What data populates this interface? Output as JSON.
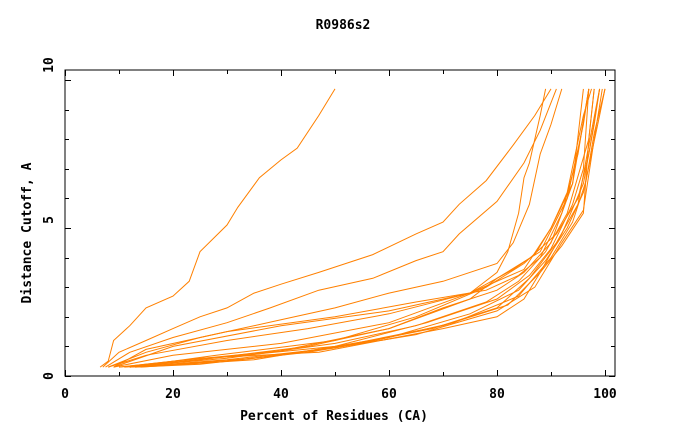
{
  "chart_data": {
    "type": "line",
    "title": "R0986s2",
    "xlabel": "Percent of Residues (CA)",
    "ylabel": "Distance Cutoff, A",
    "xlim": [
      0,
      100
    ],
    "ylim": [
      0,
      10
    ],
    "xticks": [
      "0",
      "20",
      "40",
      "60",
      "80",
      "100"
    ],
    "yticks": [
      "0",
      "5",
      "10"
    ],
    "grid": false,
    "line_color": "#ff8000",
    "series": [
      {
        "points": [
          [
            6.5,
            0.3
          ],
          [
            8,
            0.5
          ],
          [
            9,
            1.2
          ],
          [
            12,
            1.7
          ],
          [
            15,
            2.3
          ],
          [
            20,
            2.7
          ],
          [
            23,
            3.2
          ],
          [
            25,
            4.2
          ],
          [
            30,
            5.1
          ],
          [
            32,
            5.7
          ],
          [
            36,
            6.7
          ],
          [
            40,
            7.3
          ],
          [
            43,
            7.7
          ],
          [
            47,
            8.8
          ],
          [
            50,
            9.7
          ]
        ]
      },
      {
        "points": [
          [
            7,
            0.3
          ],
          [
            10,
            0.8
          ],
          [
            15,
            1.2
          ],
          [
            20,
            1.6
          ],
          [
            25,
            2.0
          ],
          [
            30,
            2.3
          ],
          [
            35,
            2.8
          ],
          [
            40,
            3.1
          ],
          [
            47,
            3.5
          ],
          [
            57,
            4.1
          ],
          [
            65,
            4.8
          ],
          [
            70,
            5.2
          ],
          [
            73,
            5.8
          ],
          [
            78,
            6.6
          ],
          [
            83,
            7.8
          ],
          [
            87,
            8.8
          ],
          [
            90,
            9.7
          ]
        ]
      },
      {
        "points": [
          [
            7.5,
            0.3
          ],
          [
            12,
            0.8
          ],
          [
            20,
            1.3
          ],
          [
            30,
            1.8
          ],
          [
            38,
            2.3
          ],
          [
            47,
            2.9
          ],
          [
            57,
            3.3
          ],
          [
            65,
            3.9
          ],
          [
            70,
            4.2
          ],
          [
            73,
            4.8
          ],
          [
            80,
            5.9
          ],
          [
            85,
            7.2
          ],
          [
            88,
            8.3
          ],
          [
            91,
            9.7
          ]
        ]
      },
      {
        "points": [
          [
            8,
            0.3
          ],
          [
            15,
            0.8
          ],
          [
            25,
            1.3
          ],
          [
            40,
            1.9
          ],
          [
            50,
            2.3
          ],
          [
            60,
            2.8
          ],
          [
            70,
            3.2
          ],
          [
            80,
            3.8
          ],
          [
            83,
            4.5
          ],
          [
            86,
            5.8
          ],
          [
            88,
            7.5
          ],
          [
            90,
            8.5
          ],
          [
            92,
            9.7
          ]
        ]
      },
      {
        "points": [
          [
            8,
            0.3
          ],
          [
            15,
            0.7
          ],
          [
            30,
            1.2
          ],
          [
            45,
            1.6
          ],
          [
            60,
            2.1
          ],
          [
            75,
            2.8
          ],
          [
            80,
            3.5
          ],
          [
            82,
            4.2
          ],
          [
            84,
            5.5
          ],
          [
            85,
            6.7
          ],
          [
            86,
            7.2
          ],
          [
            88,
            8.8
          ],
          [
            89,
            9.7
          ]
        ]
      },
      {
        "points": [
          [
            9,
            0.3
          ],
          [
            15,
            0.9
          ],
          [
            30,
            1.5
          ],
          [
            50,
            2.0
          ],
          [
            65,
            2.5
          ],
          [
            78,
            2.9
          ],
          [
            84,
            3.4
          ],
          [
            88,
            4.0
          ],
          [
            92,
            5.5
          ],
          [
            95,
            7.5
          ],
          [
            97,
            9.7
          ]
        ]
      },
      {
        "points": [
          [
            9,
            0.3
          ],
          [
            20,
            1.0
          ],
          [
            40,
            1.7
          ],
          [
            60,
            2.2
          ],
          [
            75,
            2.8
          ],
          [
            85,
            3.6
          ],
          [
            90,
            5.0
          ],
          [
            94,
            6.5
          ],
          [
            97,
            9.7
          ]
        ]
      },
      {
        "points": [
          [
            10,
            0.3
          ],
          [
            20,
            0.5
          ],
          [
            40,
            0.85
          ],
          [
            60,
            1.6
          ],
          [
            75,
            2.6
          ],
          [
            80,
            3.3
          ],
          [
            88,
            4.2
          ],
          [
            93,
            6.0
          ],
          [
            96,
            8.5
          ],
          [
            97,
            9.7
          ]
        ]
      },
      {
        "points": [
          [
            12,
            0.3
          ],
          [
            25,
            0.55
          ],
          [
            45,
            1.0
          ],
          [
            60,
            1.6
          ],
          [
            70,
            2.3
          ],
          [
            80,
            2.9
          ],
          [
            85,
            3.5
          ],
          [
            90,
            4.5
          ],
          [
            94,
            6.5
          ],
          [
            96,
            9.7
          ]
        ]
      },
      {
        "points": [
          [
            11,
            0.3
          ],
          [
            30,
            0.6
          ],
          [
            50,
            1.1
          ],
          [
            65,
            1.7
          ],
          [
            78,
            2.5
          ],
          [
            84,
            3.2
          ],
          [
            89,
            4.2
          ],
          [
            93,
            5.5
          ],
          [
            97,
            8.0
          ],
          [
            98,
            9.7
          ]
        ]
      },
      {
        "points": [
          [
            12,
            0.3
          ],
          [
            30,
            0.55
          ],
          [
            50,
            0.95
          ],
          [
            68,
            1.6
          ],
          [
            80,
            2.3
          ],
          [
            86,
            3.3
          ],
          [
            91,
            4.5
          ],
          [
            95,
            5.8
          ],
          [
            97,
            7.8
          ],
          [
            99,
            9.7
          ]
        ]
      },
      {
        "points": [
          [
            13,
            0.3
          ],
          [
            25,
            0.4
          ],
          [
            45,
            0.8
          ],
          [
            65,
            1.4
          ],
          [
            80,
            2.2
          ],
          [
            87,
            3.0
          ],
          [
            92,
            4.5
          ],
          [
            96,
            5.6
          ],
          [
            98,
            8.0
          ],
          [
            99.5,
            9.7
          ]
        ]
      },
      {
        "points": [
          [
            12,
            0.3
          ],
          [
            30,
            0.5
          ],
          [
            48,
            0.9
          ],
          [
            70,
            1.7
          ],
          [
            82,
            2.4
          ],
          [
            88,
            3.5
          ],
          [
            92,
            4.8
          ],
          [
            96,
            6.5
          ],
          [
            98,
            8.5
          ],
          [
            99,
            9.7
          ]
        ]
      },
      {
        "points": [
          [
            13,
            0.3
          ],
          [
            35,
            0.6
          ],
          [
            55,
            1.1
          ],
          [
            72,
            1.8
          ],
          [
            84,
            2.7
          ],
          [
            90,
            4.0
          ],
          [
            94,
            5.2
          ],
          [
            96.5,
            6.6
          ],
          [
            98,
            8.2
          ],
          [
            100,
            9.7
          ]
        ]
      },
      {
        "points": [
          [
            10,
            0.3
          ],
          [
            25,
            0.6
          ],
          [
            47,
            0.8
          ],
          [
            70,
            1.6
          ],
          [
            80,
            2.0
          ],
          [
            85,
            2.6
          ],
          [
            88,
            3.5
          ],
          [
            92,
            4.4
          ],
          [
            96,
            5.5
          ],
          [
            97,
            8.0
          ],
          [
            98,
            9.7
          ]
        ]
      },
      {
        "points": [
          [
            9,
            0.3
          ],
          [
            20,
            0.7
          ],
          [
            40,
            1.1
          ],
          [
            60,
            1.8
          ],
          [
            75,
            2.8
          ],
          [
            83,
            3.6
          ],
          [
            87,
            4.1
          ],
          [
            90,
            5.0
          ],
          [
            93,
            6.2
          ],
          [
            96,
            8.8
          ],
          [
            97.5,
            9.7
          ]
        ]
      },
      {
        "points": [
          [
            12,
            0.3
          ],
          [
            28,
            0.7
          ],
          [
            50,
            1.2
          ],
          [
            65,
            2.0
          ],
          [
            78,
            3.0
          ],
          [
            85,
            3.8
          ],
          [
            91,
            4.8
          ],
          [
            95,
            6.0
          ],
          [
            97,
            7.5
          ],
          [
            99,
            9.7
          ]
        ]
      },
      {
        "points": [
          [
            11,
            0.3
          ],
          [
            30,
            0.65
          ],
          [
            50,
            1.0
          ],
          [
            67,
            1.8
          ],
          [
            80,
            2.6
          ],
          [
            86,
            3.4
          ],
          [
            90,
            4.3
          ],
          [
            94,
            5.8
          ],
          [
            96,
            7.0
          ],
          [
            97,
            9.7
          ]
        ]
      },
      {
        "points": [
          [
            14,
            0.3
          ],
          [
            35,
            0.55
          ],
          [
            60,
            1.3
          ],
          [
            75,
            2.1
          ],
          [
            84,
            2.9
          ],
          [
            89,
            3.9
          ],
          [
            93,
            5.0
          ],
          [
            96,
            6.2
          ],
          [
            99,
            8.8
          ],
          [
            100,
            9.7
          ]
        ]
      }
    ]
  }
}
